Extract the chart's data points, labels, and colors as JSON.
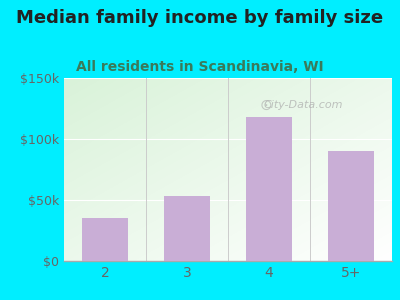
{
  "title": "Median family income by family size",
  "subtitle": "All residents in Scandinavia, WI",
  "categories": [
    "2",
    "3",
    "4",
    "5+"
  ],
  "values": [
    35000,
    53000,
    118000,
    90000
  ],
  "bar_color": "#c9aed6",
  "ylim": [
    0,
    150000
  ],
  "yticks": [
    0,
    50000,
    100000,
    150000
  ],
  "ytick_labels": [
    "$0",
    "$50k",
    "$100k",
    "$150k"
  ],
  "title_fontsize": 13,
  "subtitle_fontsize": 10,
  "title_color": "#222222",
  "subtitle_color": "#3a7a5a",
  "tick_color": "#666666",
  "bg_outer": "#00eeff",
  "watermark": "City-Data.com"
}
